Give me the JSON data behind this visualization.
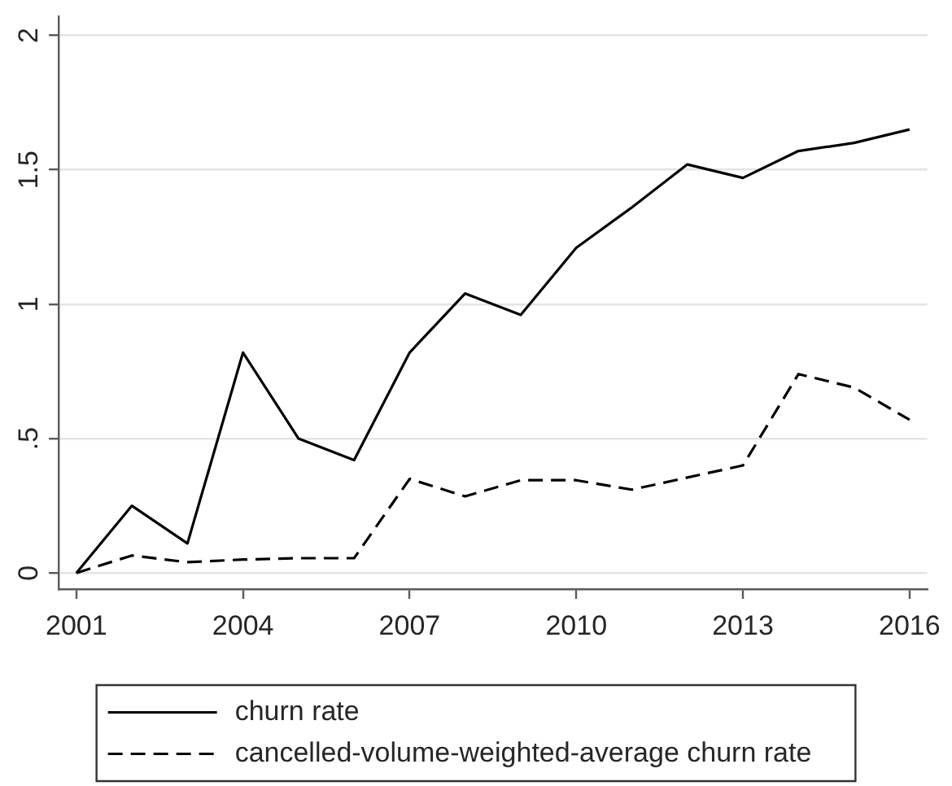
{
  "chart_data": {
    "type": "line",
    "x": [
      2001,
      2002,
      2003,
      2004,
      2005,
      2006,
      2007,
      2008,
      2009,
      2010,
      2011,
      2012,
      2013,
      2014,
      2015,
      2016
    ],
    "series": [
      {
        "name": "churn rate",
        "color": "#000000",
        "line_style": "solid",
        "values": [
          0,
          0.25,
          0.11,
          0.82,
          0.5,
          0.42,
          0.82,
          1.04,
          0.96,
          1.21,
          1.36,
          1.52,
          1.47,
          1.57,
          1.6,
          1.65
        ]
      },
      {
        "name": "cancelled-volume-weighted-average churn rate",
        "color": "#000000",
        "line_style": "dashed",
        "values": [
          0,
          0.065,
          0.04,
          0.05,
          0.055,
          0.055,
          0.35,
          0.285,
          0.345,
          0.345,
          0.31,
          0.355,
          0.4,
          0.74,
          0.69,
          0.57
        ]
      }
    ],
    "xlim": [
      2000.68,
      2016.32
    ],
    "xticks": [
      2001,
      2004,
      2007,
      2010,
      2013,
      2016
    ],
    "ylim": [
      -0.06,
      2.07
    ],
    "yticks": [
      0,
      {
        "value": 0.5,
        "label": ".5"
      },
      1,
      1.5,
      2
    ],
    "grid": "y",
    "legend": "bottom"
  }
}
